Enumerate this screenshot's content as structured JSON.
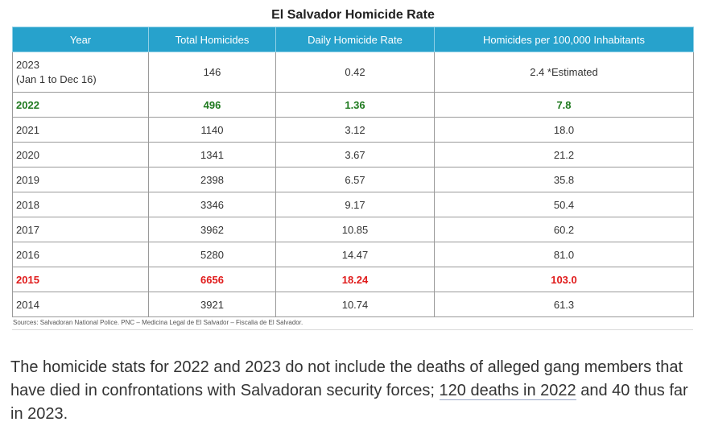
{
  "table": {
    "title": "El Salvador Homicide Rate",
    "headers": [
      "Year",
      "Total Homicides",
      "Daily Homicide Rate",
      "Homicides per 100,000 Inhabitants"
    ],
    "rows": [
      {
        "year": "2023",
        "year_note": "(Jan 1 to Dec 16)",
        "total": "146",
        "daily": "0.42",
        "per100k": "2.4 *Estimated",
        "highlight": "none"
      },
      {
        "year": "2022",
        "year_note": "",
        "total": "496",
        "daily": "1.36",
        "per100k": "7.8",
        "highlight": "green"
      },
      {
        "year": "2021",
        "year_note": "",
        "total": "1140",
        "daily": "3.12",
        "per100k": "18.0",
        "highlight": "none"
      },
      {
        "year": "2020",
        "year_note": "",
        "total": "1341",
        "daily": "3.67",
        "per100k": "21.2",
        "highlight": "none"
      },
      {
        "year": "2019",
        "year_note": "",
        "total": "2398",
        "daily": "6.57",
        "per100k": "35.8",
        "highlight": "none"
      },
      {
        "year": "2018",
        "year_note": "",
        "total": "3346",
        "daily": "9.17",
        "per100k": "50.4",
        "highlight": "none"
      },
      {
        "year": "2017",
        "year_note": "",
        "total": "3962",
        "daily": "10.85",
        "per100k": "60.2",
        "highlight": "none"
      },
      {
        "year": "2016",
        "year_note": "",
        "total": "5280",
        "daily": "14.47",
        "per100k": "81.0",
        "highlight": "none"
      },
      {
        "year": "2015",
        "year_note": "",
        "total": "6656",
        "daily": "18.24",
        "per100k": "103.0",
        "highlight": "red"
      },
      {
        "year": "2014",
        "year_note": "",
        "total": "3921",
        "daily": "10.74",
        "per100k": "61.3",
        "highlight": "none"
      }
    ],
    "sources": "Sources: Salvadoran National Police. PNC – Medicina Legal de El Salvador – Fiscalia de El Salvador."
  },
  "note": {
    "text_before": "The homicide stats for 2022 and 2023 do not include the deaths of alleged gang members that have died in confrontations with Salvadoran security forces; ",
    "link_text": "120 deaths in 2022",
    "text_after": " and 40 thus far in 2023."
  },
  "colors": {
    "header_bg": "#27a2cc",
    "highlight_green": "#1f7a1f",
    "highlight_red": "#e01b1b",
    "grid": "#9a9a9a"
  }
}
